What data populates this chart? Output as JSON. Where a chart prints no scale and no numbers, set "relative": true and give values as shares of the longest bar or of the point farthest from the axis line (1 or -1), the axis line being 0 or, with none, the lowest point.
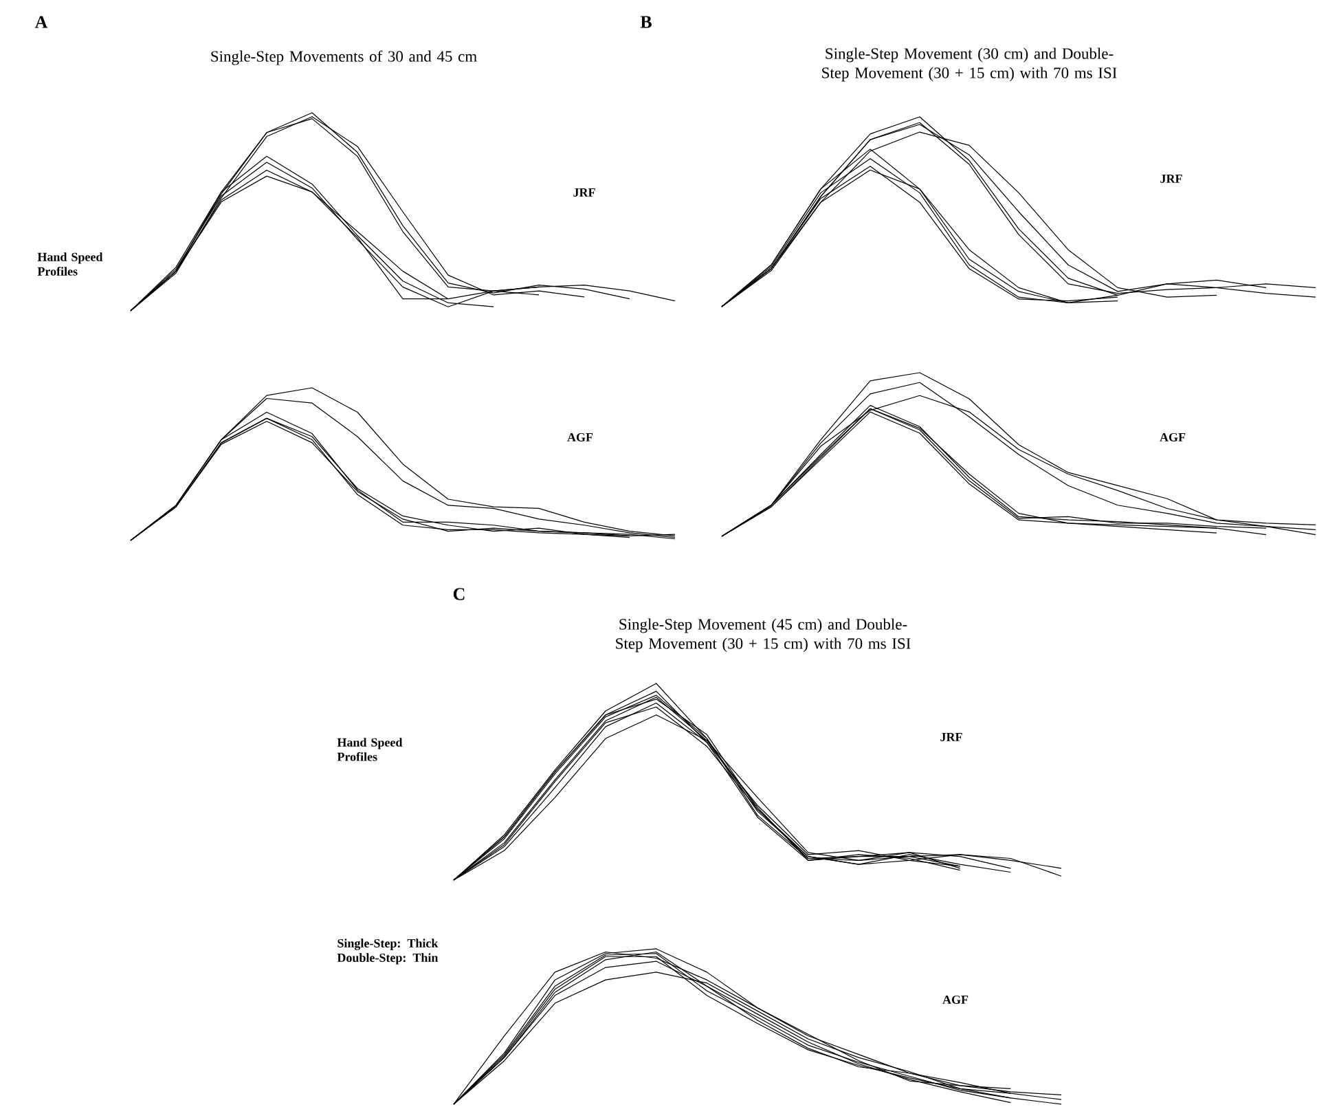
{
  "chart_data": [
    {
      "type": "line",
      "relative": true,
      "title": "Single-Step Movements of 30 and 45 cm",
      "annotations": [
        "A",
        "Hand Speed Profiles",
        "JRF"
      ],
      "categories": [
        null,
        null,
        null,
        null,
        null,
        null,
        null,
        null,
        null,
        null,
        null,
        null,
        null
      ],
      "series": [
        {
          "color": "#000000",
          "values": [
            0,
            0.2,
            0.59,
            0.9,
            1.0,
            0.8,
            0.43,
            0.14,
            0.09,
            0.13,
            0.11,
            0.06,
            null
          ]
        },
        {
          "color": "#000000",
          "values": [
            0,
            0.19,
            0.57,
            0.88,
            0.98,
            0.83,
            0.5,
            0.18,
            0.08,
            0.1,
            0.07,
            null,
            null
          ]
        },
        {
          "color": "#000000",
          "values": [
            0,
            0.2,
            0.6,
            0.9,
            0.97,
            0.78,
            0.4,
            0.12,
            0.1,
            0.12,
            0.13,
            0.1,
            0.05
          ]
        },
        {
          "color": "#000000",
          "values": [
            0,
            0.22,
            0.6,
            0.78,
            0.64,
            0.38,
            0.15,
            0.04,
            0.02,
            null,
            null,
            null,
            null
          ]
        },
        {
          "color": "#000000",
          "values": [
            0,
            0.21,
            0.58,
            0.75,
            0.62,
            0.36,
            0.12,
            0.02,
            0.1,
            0.12,
            null,
            null,
            null
          ]
        },
        {
          "color": "#000000",
          "values": [
            0,
            0.2,
            0.56,
            0.71,
            0.6,
            0.37,
            0.06,
            0.06,
            0.1,
            0.08,
            null,
            null,
            null
          ]
        },
        {
          "color": "#000000",
          "values": [
            0,
            0.2,
            0.55,
            0.68,
            0.6,
            0.4,
            0.2,
            0.06,
            null,
            null,
            null,
            null,
            null
          ]
        }
      ]
    },
    {
      "type": "line",
      "relative": true,
      "annotations": [
        "AGF"
      ],
      "categories": [
        null,
        null,
        null,
        null,
        null,
        null,
        null,
        null,
        null,
        null,
        null,
        null,
        null
      ],
      "series": [
        {
          "color": "#000000",
          "values": [
            0,
            0.23,
            0.66,
            0.95,
            1.0,
            0.84,
            0.5,
            0.27,
            0.22,
            0.21,
            0.12,
            0.06,
            0.03
          ]
        },
        {
          "color": "#000000",
          "values": [
            0,
            0.23,
            0.66,
            0.93,
            0.9,
            0.68,
            0.39,
            0.23,
            0.21,
            0.14,
            0.1,
            0.05,
            0.02
          ]
        },
        {
          "color": "#000000",
          "values": [
            0,
            0.23,
            0.66,
            0.84,
            0.7,
            0.33,
            0.12,
            0.12,
            0.1,
            0.06,
            0.05,
            0.04,
            0.01
          ]
        },
        {
          "color": "#000000",
          "values": [
            0,
            0.22,
            0.64,
            0.8,
            0.66,
            0.3,
            0.1,
            0.07,
            0.07,
            0.05,
            0.04,
            0.03,
            null
          ]
        },
        {
          "color": "#000000",
          "values": [
            0,
            0.22,
            0.63,
            0.78,
            0.64,
            0.32,
            0.14,
            0.06,
            0.08,
            0.06,
            0.05,
            0.03,
            0.04
          ]
        },
        {
          "color": "#000000",
          "values": [
            0,
            0.22,
            0.64,
            0.8,
            0.68,
            0.34,
            0.16,
            0.1,
            0.06,
            0.08,
            0.04,
            0.02,
            null
          ]
        }
      ]
    },
    {
      "type": "line",
      "relative": true,
      "title": "Single-Step Movement (30 cm) and Double-Step Movement (30 + 15 cm) with 70 ms ISI",
      "annotations": [
        "B",
        "JRF"
      ],
      "categories": [
        null,
        null,
        null,
        null,
        null,
        null,
        null,
        null,
        null,
        null,
        null,
        null,
        null
      ],
      "series": [
        {
          "color": "#000000",
          "values": [
            0,
            0.22,
            0.62,
            0.91,
            1.0,
            0.77,
            0.41,
            0.15,
            0.06,
            0.12,
            0.1,
            0.07,
            0.05
          ]
        },
        {
          "color": "#000000",
          "values": [
            0,
            0.19,
            0.55,
            0.82,
            0.92,
            0.85,
            0.6,
            0.3,
            0.1,
            0.05,
            0.06,
            null,
            null
          ]
        },
        {
          "color": "#000000",
          "values": [
            0,
            0.2,
            0.58,
            0.88,
            0.96,
            0.8,
            0.5,
            0.22,
            0.08,
            0.12,
            0.14,
            0.1,
            null
          ]
        },
        {
          "color": "#000000",
          "values": [
            0,
            0.2,
            0.58,
            0.88,
            0.97,
            0.75,
            0.38,
            0.12,
            0.07,
            0.09,
            0.1,
            0.12,
            0.1
          ]
        },
        {
          "color": "#000000",
          "values": [
            0,
            0.22,
            0.62,
            0.83,
            0.62,
            0.25,
            0.08,
            0.02,
            0.03,
            null,
            null,
            null,
            null
          ]
        },
        {
          "color": "#000000",
          "values": [
            0,
            0.21,
            0.6,
            0.78,
            0.6,
            0.22,
            0.05,
            0.02,
            0.06,
            null,
            null,
            null,
            null
          ]
        },
        {
          "color": "#000000",
          "values": [
            0,
            0.2,
            0.57,
            0.74,
            0.55,
            0.2,
            0.04,
            0.03,
            0.05,
            null,
            null,
            null,
            null
          ]
        },
        {
          "color": "#000000",
          "values": [
            0,
            0.2,
            0.55,
            0.72,
            0.62,
            0.3,
            0.1,
            0.02,
            null,
            null,
            null,
            null,
            null
          ]
        }
      ]
    },
    {
      "type": "line",
      "relative": true,
      "annotations": [
        "AGF"
      ],
      "categories": [
        null,
        null,
        null,
        null,
        null,
        null,
        null,
        null,
        null,
        null,
        null,
        null,
        null
      ],
      "series": [
        {
          "color": "#000000",
          "values": [
            0,
            0.19,
            0.59,
            0.95,
            1.0,
            0.84,
            0.56,
            0.39,
            0.31,
            0.23,
            0.1,
            0.06,
            0.04
          ]
        },
        {
          "color": "#000000",
          "values": [
            0,
            0.19,
            0.57,
            0.87,
            0.94,
            0.73,
            0.5,
            0.31,
            0.19,
            0.14,
            0.08,
            0.06,
            0.01
          ]
        },
        {
          "color": "#000000",
          "values": [
            0,
            0.19,
            0.55,
            0.77,
            0.86,
            0.76,
            0.53,
            0.38,
            0.28,
            0.17,
            0.1,
            0.08,
            0.07
          ]
        },
        {
          "color": "#000000",
          "values": [
            0,
            0.19,
            0.5,
            0.8,
            0.67,
            0.36,
            0.12,
            0.1,
            0.09,
            0.07,
            0.05,
            0.01,
            null
          ]
        },
        {
          "color": "#000000",
          "values": [
            0,
            0.18,
            0.48,
            0.78,
            0.65,
            0.34,
            0.11,
            0.12,
            0.08,
            0.08,
            0.06,
            0.05,
            null
          ]
        },
        {
          "color": "#000000",
          "values": [
            0,
            0.18,
            0.47,
            0.76,
            0.63,
            0.32,
            0.1,
            0.08,
            0.07,
            0.06,
            0.05,
            null,
            null
          ]
        },
        {
          "color": "#000000",
          "values": [
            0,
            0.19,
            0.49,
            0.78,
            0.66,
            0.38,
            0.14,
            0.08,
            0.06,
            0.04,
            0.02,
            null,
            null
          ]
        }
      ]
    },
    {
      "type": "line",
      "relative": true,
      "title": "Single-Step Movement (45 cm) and Double-Step Movement (30 + 15 cm) with 70 ms ISI",
      "annotations": [
        "C",
        "Hand Speed Profiles",
        "JRF"
      ],
      "categories": [
        null,
        null,
        null,
        null,
        null,
        null,
        null,
        null,
        null,
        null,
        null,
        null,
        null
      ],
      "series": [
        {
          "color": "#000000",
          "values": [
            0,
            0.23,
            0.56,
            0.86,
            1.0,
            0.72,
            0.33,
            0.11,
            0.12,
            0.12,
            0.07,
            null,
            null
          ]
        },
        {
          "color": "#000000",
          "values": [
            0,
            0.22,
            0.55,
            0.84,
            0.96,
            0.7,
            0.32,
            0.1,
            0.13,
            0.11,
            0.05,
            null,
            null
          ]
        },
        {
          "color": "#000000",
          "values": [
            0,
            0.21,
            0.54,
            0.83,
            0.94,
            0.72,
            0.35,
            0.12,
            0.08,
            0.13,
            0.08,
            0.04,
            null
          ]
        },
        {
          "color": "#000000",
          "values": [
            0,
            0.22,
            0.55,
            0.84,
            0.92,
            0.74,
            0.36,
            0.11,
            0.1,
            0.12,
            0.13,
            0.1,
            0.06
          ]
        },
        {
          "color": "#000000",
          "values": [
            0,
            0.15,
            0.42,
            0.72,
            0.84,
            0.71,
            0.42,
            0.14,
            0.1,
            0.14,
            0.12,
            0.06,
            null
          ]
        },
        {
          "color": "#000000",
          "values": [
            0,
            0.17,
            0.47,
            0.78,
            0.9,
            0.7,
            0.38,
            0.13,
            0.15,
            0.1,
            0.07,
            null,
            null
          ]
        },
        {
          "color": "#000000",
          "values": [
            0,
            0.18,
            0.5,
            0.8,
            0.88,
            0.68,
            0.36,
            0.12,
            0.08,
            0.1,
            0.13,
            0.11,
            0.02
          ]
        },
        {
          "color": "#000000",
          "values": [
            0,
            0.19,
            0.51,
            0.81,
            0.93,
            0.71,
            0.37,
            0.1,
            0.12,
            0.14,
            0.06,
            null,
            null
          ]
        }
      ]
    },
    {
      "type": "line",
      "relative": true,
      "annotations": [
        "Single-Step: Thick Double-Step: Thin",
        "AGF"
      ],
      "categories": [
        null,
        null,
        null,
        null,
        null,
        null,
        null,
        null,
        null,
        null,
        null,
        null,
        null
      ],
      "series": [
        {
          "color": "#000000",
          "values": [
            0,
            0.32,
            0.76,
            0.96,
            0.97,
            0.73,
            0.56,
            0.38,
            0.27,
            0.18,
            0.09,
            0.04,
            null
          ]
        },
        {
          "color": "#000000",
          "values": [
            0,
            0.3,
            0.72,
            0.93,
            0.98,
            0.76,
            0.58,
            0.4,
            0.26,
            0.16,
            0.08,
            0.01,
            null
          ]
        },
        {
          "color": "#000000",
          "values": [
            0,
            0.31,
            0.74,
            0.95,
            0.95,
            0.7,
            0.52,
            0.35,
            0.25,
            0.17,
            0.1,
            0.07,
            null
          ]
        },
        {
          "color": "#000000",
          "values": [
            0,
            0.44,
            0.85,
            0.98,
            0.94,
            0.8,
            0.62,
            0.44,
            0.32,
            0.2,
            0.14,
            0.07,
            0.03
          ]
        },
        {
          "color": "#000000",
          "values": [
            0,
            0.28,
            0.65,
            0.8,
            0.85,
            0.78,
            0.6,
            0.42,
            0.3,
            0.21,
            0.1,
            0.04,
            0
          ]
        },
        {
          "color": "#000000",
          "values": [
            0,
            0.33,
            0.8,
            0.97,
            1.0,
            0.85,
            0.62,
            0.45,
            0.28,
            0.15,
            0.12,
            0.08,
            0.06
          ]
        },
        {
          "color": "#000000",
          "values": [
            0,
            0.3,
            0.7,
            0.88,
            0.92,
            0.76,
            0.54,
            0.36,
            0.24,
            0.2,
            0.12,
            0.1,
            null
          ]
        }
      ]
    }
  ]
}
